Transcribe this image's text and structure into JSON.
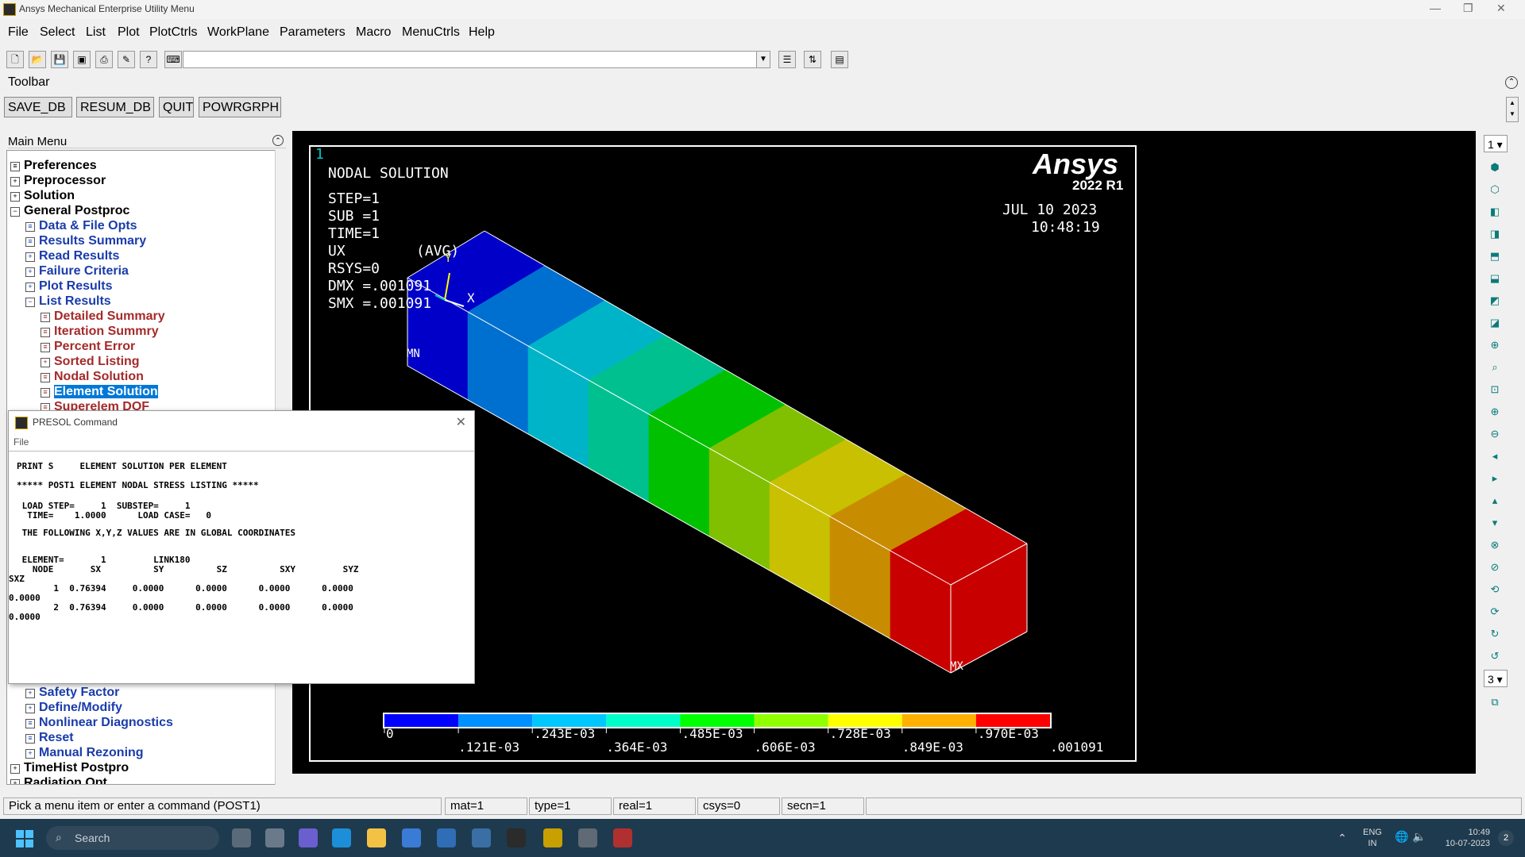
{
  "window": {
    "title": "Ansys Mechanical Enterprise Utility Menu"
  },
  "menubar": [
    "File",
    "Select",
    "List",
    "Plot",
    "PlotCtrls",
    "WorkPlane",
    "Parameters",
    "Macro",
    "MenuCtrls",
    "Help"
  ],
  "toolbar": {
    "label": "Toolbar",
    "buttons": [
      "SAVE_DB",
      "RESUM_DB",
      "QUIT",
      "POWRGRPH"
    ]
  },
  "main_menu": {
    "header": "Main Menu",
    "items": [
      {
        "label": "Preferences",
        "icon": "page-icon",
        "level": 0,
        "color": "black"
      },
      {
        "label": "Preprocessor",
        "icon": "expand-icon",
        "level": 0,
        "color": "black"
      },
      {
        "label": "Solution",
        "icon": "expand-icon",
        "level": 0,
        "color": "black"
      },
      {
        "label": "General Postproc",
        "icon": "collapse-icon",
        "level": 0,
        "color": "black"
      },
      {
        "label": "Data & File Opts",
        "icon": "page-icon",
        "level": 1,
        "color": "blue"
      },
      {
        "label": "Results Summary",
        "icon": "page-icon",
        "level": 1,
        "color": "blue"
      },
      {
        "label": "Read Results",
        "icon": "expand-icon",
        "level": 1,
        "color": "blue"
      },
      {
        "label": "Failure Criteria",
        "icon": "expand-icon",
        "level": 1,
        "color": "blue"
      },
      {
        "label": "Plot Results",
        "icon": "expand-icon",
        "level": 1,
        "color": "blue"
      },
      {
        "label": "List Results",
        "icon": "collapse-icon",
        "level": 1,
        "color": "blue"
      },
      {
        "label": "Detailed Summary",
        "icon": "page-icon",
        "level": 2,
        "color": "red"
      },
      {
        "label": "Iteration Summry",
        "icon": "page-icon",
        "level": 2,
        "color": "red"
      },
      {
        "label": "Percent Error",
        "icon": "page-icon",
        "level": 2,
        "color": "red"
      },
      {
        "label": "Sorted Listing",
        "icon": "expand-icon",
        "level": 2,
        "color": "red"
      },
      {
        "label": "Nodal Solution",
        "icon": "page-icon",
        "level": 2,
        "color": "red"
      },
      {
        "label": "Element Solution",
        "icon": "page-icon",
        "level": 2,
        "color": "red",
        "selected": true
      },
      {
        "label": "Superelem DOF",
        "icon": "page-icon",
        "level": 2,
        "color": "red"
      },
      {
        "label": "Safety Factor",
        "icon": "expand-icon",
        "level": 1,
        "color": "blue"
      },
      {
        "label": "Define/Modify",
        "icon": "expand-icon",
        "level": 1,
        "color": "blue"
      },
      {
        "label": "Nonlinear Diagnostics",
        "icon": "page-icon",
        "level": 1,
        "color": "blue"
      },
      {
        "label": "Reset",
        "icon": "page-icon",
        "level": 1,
        "color": "blue"
      },
      {
        "label": "Manual Rezoning",
        "icon": "expand-icon",
        "level": 1,
        "color": "blue"
      },
      {
        "label": "TimeHist Postpro",
        "icon": "expand-icon",
        "level": 0,
        "color": "black"
      },
      {
        "label": "Radiation Opt",
        "icon": "expand-icon",
        "level": 0,
        "color": "black"
      }
    ]
  },
  "graphics": {
    "window_number": "1",
    "brand": "Ansys",
    "version": "2022 R1",
    "date": "JUL 10 2023",
    "time": "10:48:19",
    "info_lines": [
      "NODAL SOLUTION",
      "STEP=1",
      "SUB =1",
      "TIME=1",
      "UX",
      "RSYS=0",
      "DMX =.001091",
      "SMX =.001091"
    ],
    "avg_label": "(AVG)",
    "axis_y": "Y",
    "axis_x": "X",
    "min_label": "MN",
    "max_label": "MX",
    "contour_colors": [
      "#0000c8",
      "#0070d0",
      "#00b4c8",
      "#00c090",
      "#00c000",
      "#80c000",
      "#c8c000",
      "#c88c00",
      "#c80000"
    ],
    "legend_colors": [
      "#0000ff",
      "#0090ff",
      "#00c8ff",
      "#00ffc8",
      "#00ff00",
      "#90ff00",
      "#ffff00",
      "#ffb000",
      "#ff0000"
    ],
    "legend_top_labels": [
      "0",
      ".243E-03",
      ".485E-03",
      ".728E-03",
      ".970E-03"
    ],
    "legend_bottom_labels": [
      ".121E-03",
      ".364E-03",
      ".606E-03",
      ".849E-03",
      ".001091"
    ]
  },
  "right_toolbar": {
    "top_select": "1",
    "bottom_select": "3"
  },
  "presol": {
    "title": "PRESOL  Command",
    "menu": "File",
    "lines": [
      "PRINT S     ELEMENT SOLUTION PER ELEMENT",
      "***** POST1 ELEMENT NODAL STRESS LISTING *****",
      " LOAD STEP=     1  SUBSTEP=     1",
      "  TIME=    1.0000      LOAD CASE=   0",
      " THE FOLLOWING X,Y,Z VALUES ARE IN GLOBAL COORDINATES",
      " ELEMENT=       1         LINK180",
      "   NODE       SX          SY          SZ          SXY         SYZ",
      "SXZ",
      "       1  0.76394     0.0000      0.0000      0.0000      0.0000",
      "0.0000",
      "       2  0.76394     0.0000      0.0000      0.0000      0.0000",
      "0.0000"
    ]
  },
  "statusbar": {
    "prompt": "Pick a menu item or enter a command (POST1)",
    "mat": "mat=1",
    "type": "type=1",
    "real": "real=1",
    "csys": "csys=0",
    "secn": "secn=1"
  },
  "taskbar": {
    "search_placeholder": "Search",
    "lang_top": "ENG",
    "lang_bottom": "IN",
    "clock_time": "10:49",
    "clock_date": "10-07-2023",
    "notifications": "2"
  }
}
